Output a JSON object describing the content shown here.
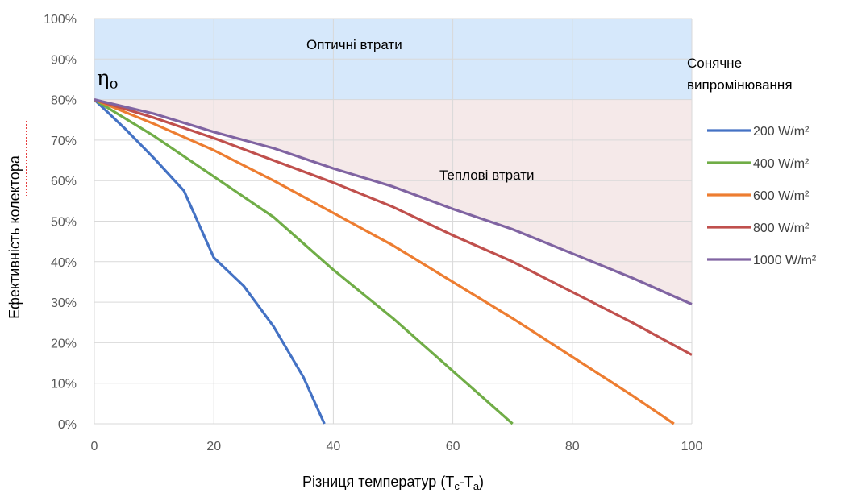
{
  "chart_data": {
    "type": "line",
    "xlabel": "Різниця температур (Tc-Ta)",
    "ylabel": "Ефективність колектора",
    "xlim": [
      0,
      100
    ],
    "ylim": [
      0,
      100
    ],
    "x_ticks": [
      "0",
      "20",
      "40",
      "60",
      "80",
      "100"
    ],
    "y_ticks": [
      "0%",
      "10%",
      "20%",
      "30%",
      "40%",
      "50%",
      "60%",
      "70%",
      "80%",
      "90%",
      "100%"
    ],
    "grid": true,
    "legend_title": "Сонячне випромінювання",
    "legend_position": "right",
    "eta0_label": "η",
    "eta0_subscript": "o",
    "eta0_value": 80,
    "regions": [
      {
        "label": "Оптичні втрати",
        "from": 80,
        "to": 100,
        "color": "#d6e8fb"
      },
      {
        "label": "Теплові втрати",
        "color": "#f5e9e9"
      }
    ],
    "series": [
      {
        "name": "200 W/m²",
        "color": "#4472c4",
        "points": [
          [
            0,
            80
          ],
          [
            5,
            73
          ],
          [
            10,
            65.5
          ],
          [
            15,
            57.5
          ],
          [
            20,
            41
          ],
          [
            25,
            34
          ],
          [
            30,
            24
          ],
          [
            35,
            11.5
          ],
          [
            38.5,
            0
          ]
        ]
      },
      {
        "name": "400 W/m²",
        "color": "#70ad47",
        "points": [
          [
            0,
            80
          ],
          [
            10,
            71
          ],
          [
            20,
            61
          ],
          [
            30,
            51
          ],
          [
            40,
            38
          ],
          [
            50,
            26
          ],
          [
            60,
            13
          ],
          [
            70,
            0
          ]
        ]
      },
      {
        "name": "600 W/m²",
        "color": "#ed7d31",
        "points": [
          [
            0,
            80
          ],
          [
            10,
            74
          ],
          [
            20,
            67.5
          ],
          [
            30,
            60
          ],
          [
            40,
            52
          ],
          [
            50,
            44
          ],
          [
            60,
            35
          ],
          [
            70,
            26
          ],
          [
            80,
            16.5
          ],
          [
            90,
            7
          ],
          [
            97,
            0
          ]
        ]
      },
      {
        "name": "800 W/m²",
        "color": "#c0504d",
        "points": [
          [
            0,
            80
          ],
          [
            10,
            75.5
          ],
          [
            20,
            70.5
          ],
          [
            30,
            65
          ],
          [
            40,
            59.5
          ],
          [
            50,
            53.5
          ],
          [
            60,
            46.5
          ],
          [
            70,
            40
          ],
          [
            80,
            32.5
          ],
          [
            90,
            25
          ],
          [
            100,
            17
          ]
        ]
      },
      {
        "name": "1000 W/m²",
        "color": "#8064a2",
        "points": [
          [
            0,
            80
          ],
          [
            10,
            76.5
          ],
          [
            20,
            72
          ],
          [
            30,
            68
          ],
          [
            40,
            63
          ],
          [
            50,
            58.5
          ],
          [
            60,
            53
          ],
          [
            70,
            48
          ],
          [
            80,
            42
          ],
          [
            90,
            36
          ],
          [
            100,
            29.5
          ]
        ]
      }
    ]
  }
}
